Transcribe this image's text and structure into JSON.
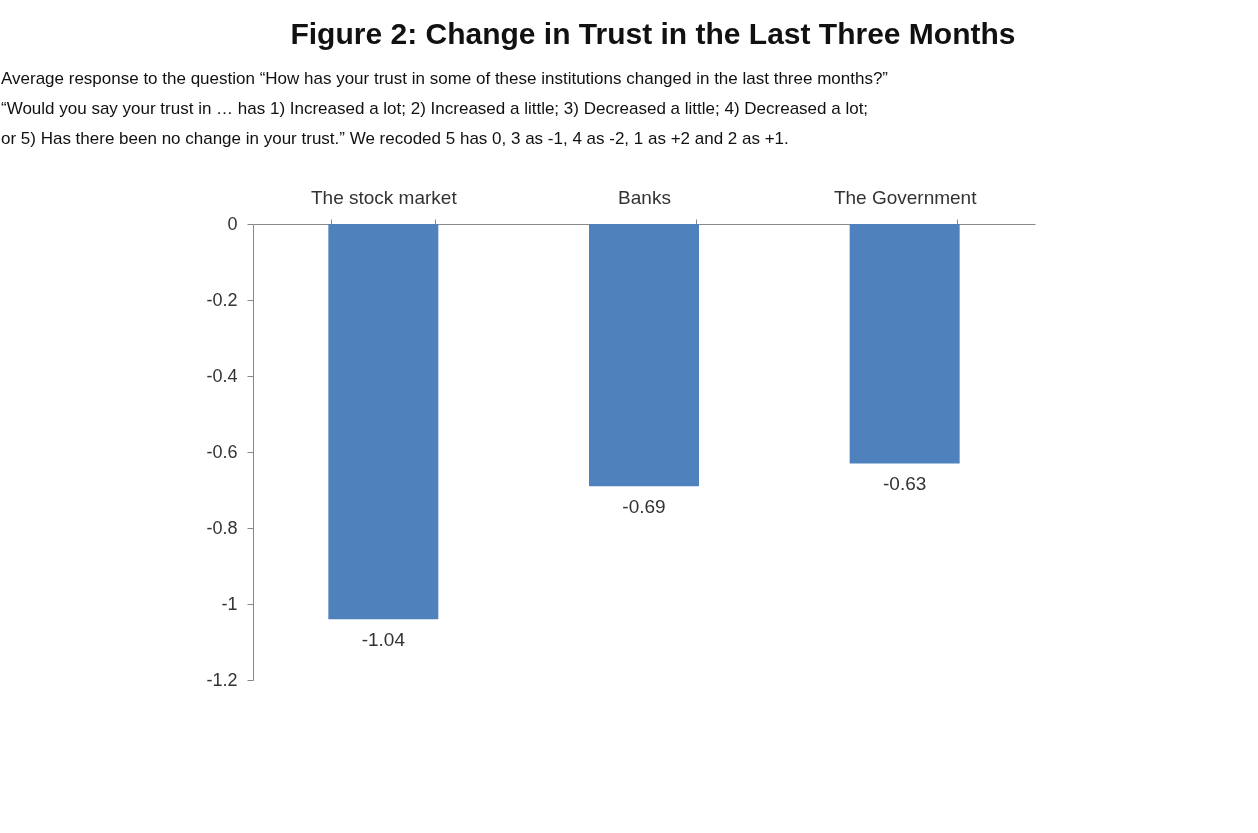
{
  "chart_data": {
    "type": "bar",
    "title": "Figure 2: Change in Trust in the Last Three Months",
    "subtitle": "Average response to the question “How has your trust in some of these institutions changed in the last three months?” “Would you say your trust in … has 1) Increased a lot; 2) Increased a little; 3) Decreased a little; 4) Decreased a lot; or 5) Has there been no change in your trust.” We recoded 5 has 0, 3 as -1, 4 as -2, 1 as +2 and 2 as +1.",
    "categories": [
      "The stock market",
      "Banks",
      "The Government"
    ],
    "values": [
      -1.04,
      -0.69,
      -0.63
    ],
    "color": "#4f81bd",
    "ylim": [
      -1.2,
      0
    ],
    "yticks": [
      0,
      -0.2,
      -0.4,
      -0.6,
      -0.8,
      -1,
      -1.2
    ],
    "data_labels": true,
    "grid": false
  }
}
